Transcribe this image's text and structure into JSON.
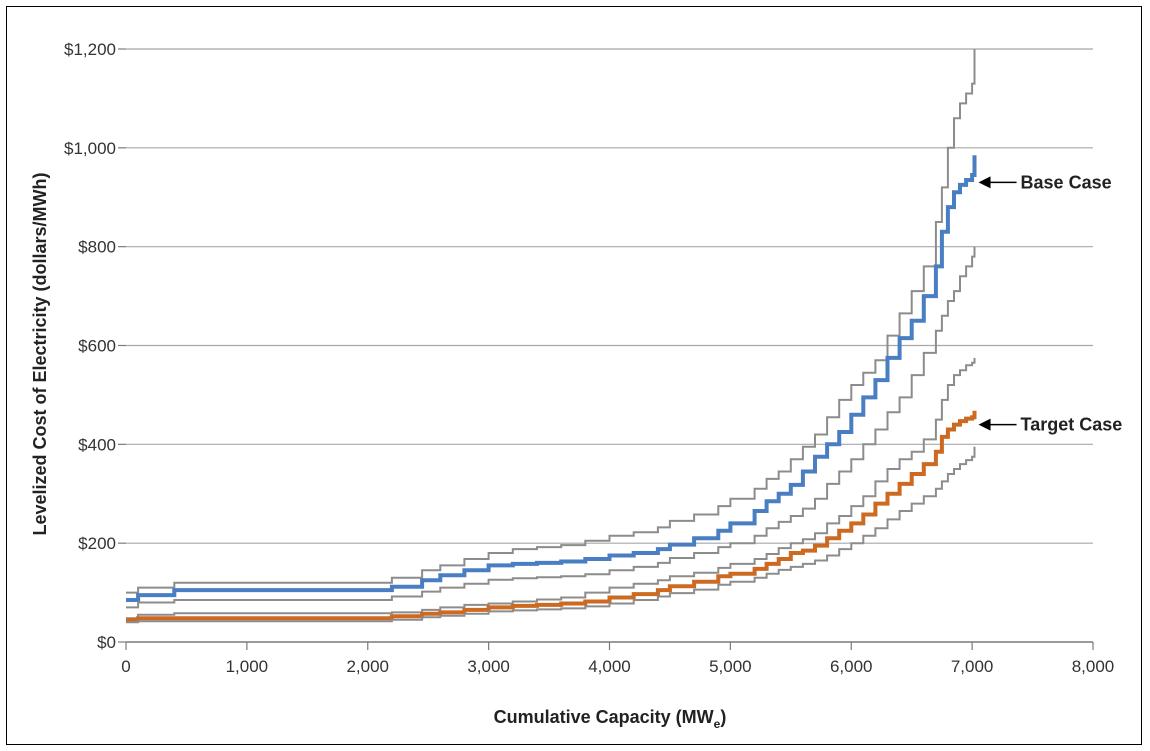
{
  "chart_data": {
    "type": "line",
    "xlabel_main": "Cumulative Capacity (MW",
    "xlabel_sub": "e",
    "xlabel_tail": ")",
    "ylabel": "Levelized Cost of Electricity (dollars/MWh)",
    "xlim": [
      0,
      8000
    ],
    "ylim": [
      0,
      1200
    ],
    "x_ticks": [
      0,
      1000,
      2000,
      3000,
      4000,
      5000,
      6000,
      7000,
      8000
    ],
    "x_tick_labels": [
      "0",
      "1,000",
      "2,000",
      "3,000",
      "4,000",
      "5,000",
      "6,000",
      "7,000",
      "8,000"
    ],
    "y_ticks": [
      0,
      200,
      400,
      600,
      800,
      1000,
      1200
    ],
    "y_tick_labels": [
      "$0",
      "$200",
      "$400",
      "$600",
      "$800",
      "$1,000",
      "$1,200"
    ],
    "grid": "horizontal",
    "annotations": [
      {
        "text": "Base Case",
        "target_x": 7020,
        "target_y": 930
      },
      {
        "text": "Target Case",
        "target_x": 7020,
        "target_y": 440
      }
    ],
    "series": [
      {
        "role": "base-upper-bound",
        "color": "#8c8c8c",
        "width": 2,
        "points": [
          [
            0,
            100
          ],
          [
            100,
            110
          ],
          [
            400,
            120
          ],
          [
            2100,
            120
          ],
          [
            2200,
            130
          ],
          [
            2450,
            145
          ],
          [
            2600,
            155
          ],
          [
            2800,
            168
          ],
          [
            3000,
            180
          ],
          [
            3200,
            188
          ],
          [
            3400,
            192
          ],
          [
            3600,
            196
          ],
          [
            3800,
            205
          ],
          [
            4000,
            215
          ],
          [
            4200,
            222
          ],
          [
            4400,
            232
          ],
          [
            4500,
            245
          ],
          [
            4700,
            258
          ],
          [
            4900,
            275
          ],
          [
            5000,
            290
          ],
          [
            5200,
            310
          ],
          [
            5300,
            330
          ],
          [
            5400,
            345
          ],
          [
            5500,
            370
          ],
          [
            5600,
            395
          ],
          [
            5700,
            420
          ],
          [
            5800,
            455
          ],
          [
            5900,
            490
          ],
          [
            6000,
            520
          ],
          [
            6100,
            545
          ],
          [
            6200,
            570
          ],
          [
            6300,
            620
          ],
          [
            6400,
            665
          ],
          [
            6500,
            710
          ],
          [
            6600,
            760
          ],
          [
            6700,
            850
          ],
          [
            6750,
            920
          ],
          [
            6800,
            1000
          ],
          [
            6850,
            1060
          ],
          [
            6900,
            1090
          ],
          [
            6950,
            1110
          ],
          [
            7000,
            1130
          ],
          [
            7020,
            1200
          ]
        ]
      },
      {
        "role": "base-case",
        "color": "#4a7ec2",
        "width": 4,
        "points": [
          [
            0,
            85
          ],
          [
            100,
            95
          ],
          [
            400,
            105
          ],
          [
            2100,
            105
          ],
          [
            2200,
            112
          ],
          [
            2450,
            125
          ],
          [
            2600,
            135
          ],
          [
            2800,
            145
          ],
          [
            3000,
            155
          ],
          [
            3200,
            158
          ],
          [
            3400,
            160
          ],
          [
            3600,
            163
          ],
          [
            3800,
            168
          ],
          [
            4000,
            175
          ],
          [
            4200,
            180
          ],
          [
            4400,
            188
          ],
          [
            4500,
            197
          ],
          [
            4700,
            210
          ],
          [
            4900,
            225
          ],
          [
            5000,
            240
          ],
          [
            5200,
            265
          ],
          [
            5300,
            285
          ],
          [
            5400,
            300
          ],
          [
            5500,
            318
          ],
          [
            5600,
            345
          ],
          [
            5700,
            375
          ],
          [
            5800,
            400
          ],
          [
            5900,
            425
          ],
          [
            6000,
            460
          ],
          [
            6100,
            495
          ],
          [
            6200,
            530
          ],
          [
            6300,
            575
          ],
          [
            6400,
            615
          ],
          [
            6500,
            650
          ],
          [
            6600,
            700
          ],
          [
            6700,
            760
          ],
          [
            6750,
            830
          ],
          [
            6800,
            880
          ],
          [
            6850,
            910
          ],
          [
            6900,
            925
          ],
          [
            6950,
            935
          ],
          [
            7000,
            945
          ],
          [
            7020,
            985
          ]
        ]
      },
      {
        "role": "base-lower-bound",
        "color": "#8c8c8c",
        "width": 2,
        "points": [
          [
            0,
            70
          ],
          [
            100,
            80
          ],
          [
            400,
            85
          ],
          [
            2100,
            85
          ],
          [
            2200,
            92
          ],
          [
            2450,
            102
          ],
          [
            2600,
            110
          ],
          [
            2800,
            118
          ],
          [
            3000,
            126
          ],
          [
            3200,
            129
          ],
          [
            3400,
            131
          ],
          [
            3600,
            133
          ],
          [
            3800,
            137
          ],
          [
            4000,
            145
          ],
          [
            4200,
            152
          ],
          [
            4400,
            160
          ],
          [
            4500,
            170
          ],
          [
            4700,
            180
          ],
          [
            4900,
            192
          ],
          [
            5000,
            200
          ],
          [
            5200,
            215
          ],
          [
            5300,
            230
          ],
          [
            5400,
            243
          ],
          [
            5500,
            255
          ],
          [
            5600,
            270
          ],
          [
            5700,
            290
          ],
          [
            5800,
            320
          ],
          [
            5900,
            345
          ],
          [
            6000,
            370
          ],
          [
            6100,
            400
          ],
          [
            6200,
            430
          ],
          [
            6300,
            465
          ],
          [
            6400,
            495
          ],
          [
            6500,
            540
          ],
          [
            6600,
            585
          ],
          [
            6700,
            630
          ],
          [
            6750,
            660
          ],
          [
            6800,
            690
          ],
          [
            6850,
            710
          ],
          [
            6900,
            740
          ],
          [
            6950,
            760
          ],
          [
            7000,
            780
          ],
          [
            7020,
            800
          ]
        ]
      },
      {
        "role": "target-upper-bound",
        "color": "#8c8c8c",
        "width": 2,
        "points": [
          [
            0,
            48
          ],
          [
            100,
            55
          ],
          [
            400,
            58
          ],
          [
            2100,
            58
          ],
          [
            2200,
            60
          ],
          [
            2450,
            65
          ],
          [
            2600,
            70
          ],
          [
            2800,
            75
          ],
          [
            3000,
            78
          ],
          [
            3200,
            82
          ],
          [
            3400,
            86
          ],
          [
            3600,
            90
          ],
          [
            3800,
            100
          ],
          [
            4000,
            110
          ],
          [
            4200,
            118
          ],
          [
            4400,
            125
          ],
          [
            4500,
            133
          ],
          [
            4700,
            140
          ],
          [
            4900,
            150
          ],
          [
            5000,
            158
          ],
          [
            5200,
            168
          ],
          [
            5300,
            178
          ],
          [
            5400,
            190
          ],
          [
            5500,
            200
          ],
          [
            5600,
            208
          ],
          [
            5700,
            220
          ],
          [
            5800,
            240
          ],
          [
            5900,
            255
          ],
          [
            6000,
            275
          ],
          [
            6100,
            295
          ],
          [
            6200,
            325
          ],
          [
            6300,
            350
          ],
          [
            6400,
            370
          ],
          [
            6500,
            385
          ],
          [
            6600,
            410
          ],
          [
            6700,
            450
          ],
          [
            6750,
            490
          ],
          [
            6800,
            520
          ],
          [
            6850,
            540
          ],
          [
            6900,
            550
          ],
          [
            6950,
            560
          ],
          [
            7000,
            565
          ],
          [
            7020,
            575
          ]
        ]
      },
      {
        "role": "target-case",
        "color": "#cc6a22",
        "width": 4,
        "points": [
          [
            0,
            45
          ],
          [
            100,
            48
          ],
          [
            400,
            48
          ],
          [
            2100,
            48
          ],
          [
            2200,
            52
          ],
          [
            2450,
            57
          ],
          [
            2600,
            60
          ],
          [
            2800,
            65
          ],
          [
            3000,
            70
          ],
          [
            3200,
            73
          ],
          [
            3400,
            75
          ],
          [
            3600,
            78
          ],
          [
            3800,
            82
          ],
          [
            4000,
            90
          ],
          [
            4200,
            97
          ],
          [
            4400,
            105
          ],
          [
            4500,
            113
          ],
          [
            4700,
            122
          ],
          [
            4900,
            133
          ],
          [
            5000,
            138
          ],
          [
            5200,
            148
          ],
          [
            5300,
            158
          ],
          [
            5400,
            168
          ],
          [
            5500,
            180
          ],
          [
            5600,
            185
          ],
          [
            5700,
            195
          ],
          [
            5800,
            210
          ],
          [
            5900,
            225
          ],
          [
            6000,
            240
          ],
          [
            6100,
            258
          ],
          [
            6200,
            280
          ],
          [
            6300,
            300
          ],
          [
            6400,
            320
          ],
          [
            6500,
            340
          ],
          [
            6600,
            360
          ],
          [
            6700,
            385
          ],
          [
            6750,
            415
          ],
          [
            6800,
            430
          ],
          [
            6850,
            440
          ],
          [
            6900,
            447
          ],
          [
            6950,
            452
          ],
          [
            7000,
            455
          ],
          [
            7020,
            468
          ]
        ]
      },
      {
        "role": "target-lower-bound",
        "color": "#8c8c8c",
        "width": 2,
        "points": [
          [
            0,
            40
          ],
          [
            100,
            42
          ],
          [
            400,
            42
          ],
          [
            2100,
            42
          ],
          [
            2200,
            45
          ],
          [
            2450,
            50
          ],
          [
            2600,
            53
          ],
          [
            2800,
            57
          ],
          [
            3000,
            62
          ],
          [
            3200,
            64
          ],
          [
            3400,
            66
          ],
          [
            3600,
            68
          ],
          [
            3800,
            72
          ],
          [
            4000,
            78
          ],
          [
            4200,
            85
          ],
          [
            4400,
            92
          ],
          [
            4500,
            99
          ],
          [
            4700,
            106
          ],
          [
            4900,
            116
          ],
          [
            5000,
            122
          ],
          [
            5200,
            130
          ],
          [
            5300,
            138
          ],
          [
            5400,
            146
          ],
          [
            5500,
            152
          ],
          [
            5600,
            158
          ],
          [
            5700,
            165
          ],
          [
            5800,
            175
          ],
          [
            5900,
            188
          ],
          [
            6000,
            200
          ],
          [
            6100,
            215
          ],
          [
            6200,
            230
          ],
          [
            6300,
            248
          ],
          [
            6400,
            265
          ],
          [
            6500,
            280
          ],
          [
            6600,
            295
          ],
          [
            6700,
            310
          ],
          [
            6750,
            325
          ],
          [
            6800,
            340
          ],
          [
            6850,
            350
          ],
          [
            6900,
            360
          ],
          [
            6950,
            368
          ],
          [
            7000,
            375
          ],
          [
            7020,
            395
          ]
        ]
      }
    ]
  }
}
